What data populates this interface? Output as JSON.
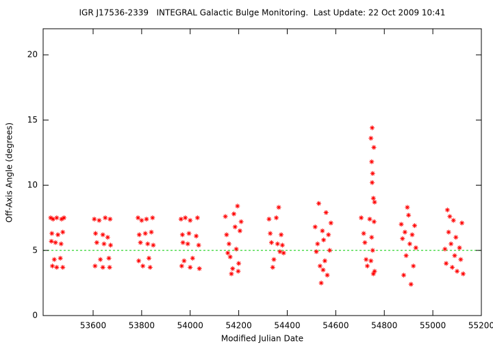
{
  "chart_data": {
    "type": "scatter",
    "title": "IGR J17536-2339   INTEGRAL Galactic Bulge Monitoring.  Last Update: 22 Oct 2009 10:41",
    "x_label": "Modified Julian Date",
    "y_label": "Off-Axis Angle (degrees)",
    "xlim": [
      53394,
      55200
    ],
    "xticks": [
      53600,
      53800,
      54000,
      54200,
      54400,
      54600,
      54800,
      55000,
      55200
    ],
    "ylim": [
      0,
      22
    ],
    "yticks": [
      0,
      5,
      10,
      15,
      20
    ],
    "color": "#ff0000",
    "reference_line": {
      "value": 5,
      "color": "#00cc00"
    },
    "x": [
      53425,
      53435,
      53450,
      53470,
      53430,
      53455,
      53475,
      53428,
      53445,
      53468,
      53440,
      53465,
      53432,
      53450,
      53475,
      53480,
      53605,
      53625,
      53650,
      53670,
      53610,
      53640,
      53660,
      53615,
      53645,
      53672,
      53630,
      53665,
      53608,
      53640,
      53668,
      53785,
      53800,
      53820,
      53845,
      53790,
      53815,
      53840,
      53795,
      53825,
      53848,
      53788,
      53830,
      53805,
      53835,
      53962,
      53980,
      54000,
      54030,
      53968,
      53995,
      54025,
      53970,
      53990,
      54035,
      53975,
      54010,
      53965,
      54000,
      54038,
      54145,
      54150,
      54160,
      54165,
      54170,
      54180,
      54185,
      54190,
      54195,
      54200,
      54205,
      54210,
      54175,
      54155,
      54198,
      54325,
      54335,
      54345,
      54355,
      54360,
      54365,
      54370,
      54375,
      54380,
      54385,
      54340,
      54330,
      54515,
      54520,
      54530,
      54535,
      54540,
      54545,
      54550,
      54555,
      54560,
      54565,
      54570,
      54575,
      54580,
      54525,
      54548,
      54705,
      54715,
      54720,
      54725,
      54730,
      54740,
      54745,
      54748,
      54750,
      54752,
      54755,
      54757,
      54760,
      54748,
      54752,
      54755,
      54758,
      54745,
      54760,
      54750,
      54870,
      54875,
      54880,
      54885,
      54890,
      54895,
      54900,
      54905,
      54910,
      54915,
      54920,
      54925,
      54930,
      55050,
      55055,
      55060,
      55065,
      55070,
      55075,
      55080,
      55085,
      55090,
      55095,
      55100,
      55110,
      55120,
      55125,
      55115
    ],
    "values": [
      7.5,
      7.4,
      7.5,
      7.4,
      6.3,
      6.2,
      6.4,
      5.7,
      5.6,
      5.5,
      4.3,
      4.4,
      3.8,
      3.7,
      3.7,
      7.5,
      7.4,
      7.3,
      7.5,
      7.4,
      6.3,
      6.2,
      6.0,
      5.6,
      5.5,
      5.4,
      4.3,
      4.4,
      3.8,
      3.7,
      3.7,
      7.5,
      7.3,
      7.4,
      7.5,
      6.2,
      6.3,
      6.4,
      5.6,
      5.5,
      5.4,
      4.2,
      4.4,
      3.8,
      3.7,
      7.4,
      7.5,
      7.3,
      7.5,
      6.2,
      6.3,
      6.1,
      5.6,
      5.5,
      5.4,
      4.2,
      4.4,
      3.8,
      3.7,
      3.6,
      7.6,
      6.2,
      5.5,
      4.5,
      3.2,
      7.8,
      6.8,
      5.1,
      8.4,
      4.0,
      6.5,
      7.2,
      3.6,
      4.8,
      3.4,
      7.4,
      5.6,
      4.3,
      7.5,
      5.5,
      8.3,
      4.9,
      6.2,
      5.4,
      4.8,
      3.7,
      6.3,
      6.8,
      4.9,
      8.6,
      3.8,
      2.5,
      6.5,
      5.8,
      4.2,
      7.9,
      3.1,
      6.2,
      5.0,
      7.1,
      5.5,
      3.5,
      7.5,
      6.3,
      5.6,
      4.3,
      3.8,
      7.4,
      13.6,
      11.8,
      14.4,
      10.9,
      9.0,
      12.9,
      8.7,
      6.0,
      5.0,
      3.2,
      7.2,
      4.2,
      3.4,
      10.2,
      7.0,
      5.9,
      3.1,
      6.4,
      4.6,
      8.3,
      7.7,
      5.5,
      2.4,
      6.2,
      3.8,
      6.9,
      5.2,
      5.1,
      4.0,
      8.1,
      6.4,
      7.6,
      5.5,
      3.7,
      7.3,
      4.6,
      6.0,
      3.4,
      5.2,
      7.1,
      3.2,
      4.3
    ]
  }
}
